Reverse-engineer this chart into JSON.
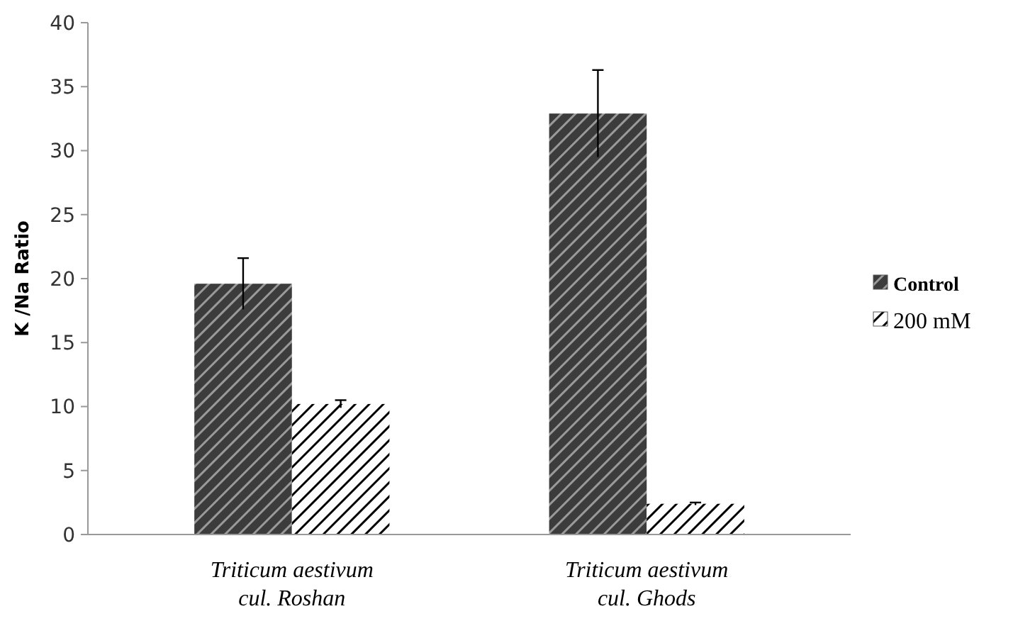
{
  "chart_data": {
    "type": "bar",
    "ylabel": "K /Na  Ratio",
    "categories": [
      "Triticum aestivum\ncul. Roshan",
      "Triticum aestivum\ncul. Ghods"
    ],
    "series": [
      {
        "name": "Control",
        "color": "#3c3c3c",
        "values": [
          19.6,
          32.9
        ],
        "errors": [
          2.0,
          3.4
        ]
      },
      {
        "name": "200  mM",
        "color": "#ffffff",
        "values": [
          10.2,
          2.4
        ],
        "errors": [
          0.3,
          0.1
        ]
      }
    ],
    "ylim": [
      0,
      40
    ],
    "yticks": [
      0,
      5,
      10,
      15,
      20,
      25,
      30,
      35,
      40
    ],
    "grid": false,
    "legend": "right"
  }
}
